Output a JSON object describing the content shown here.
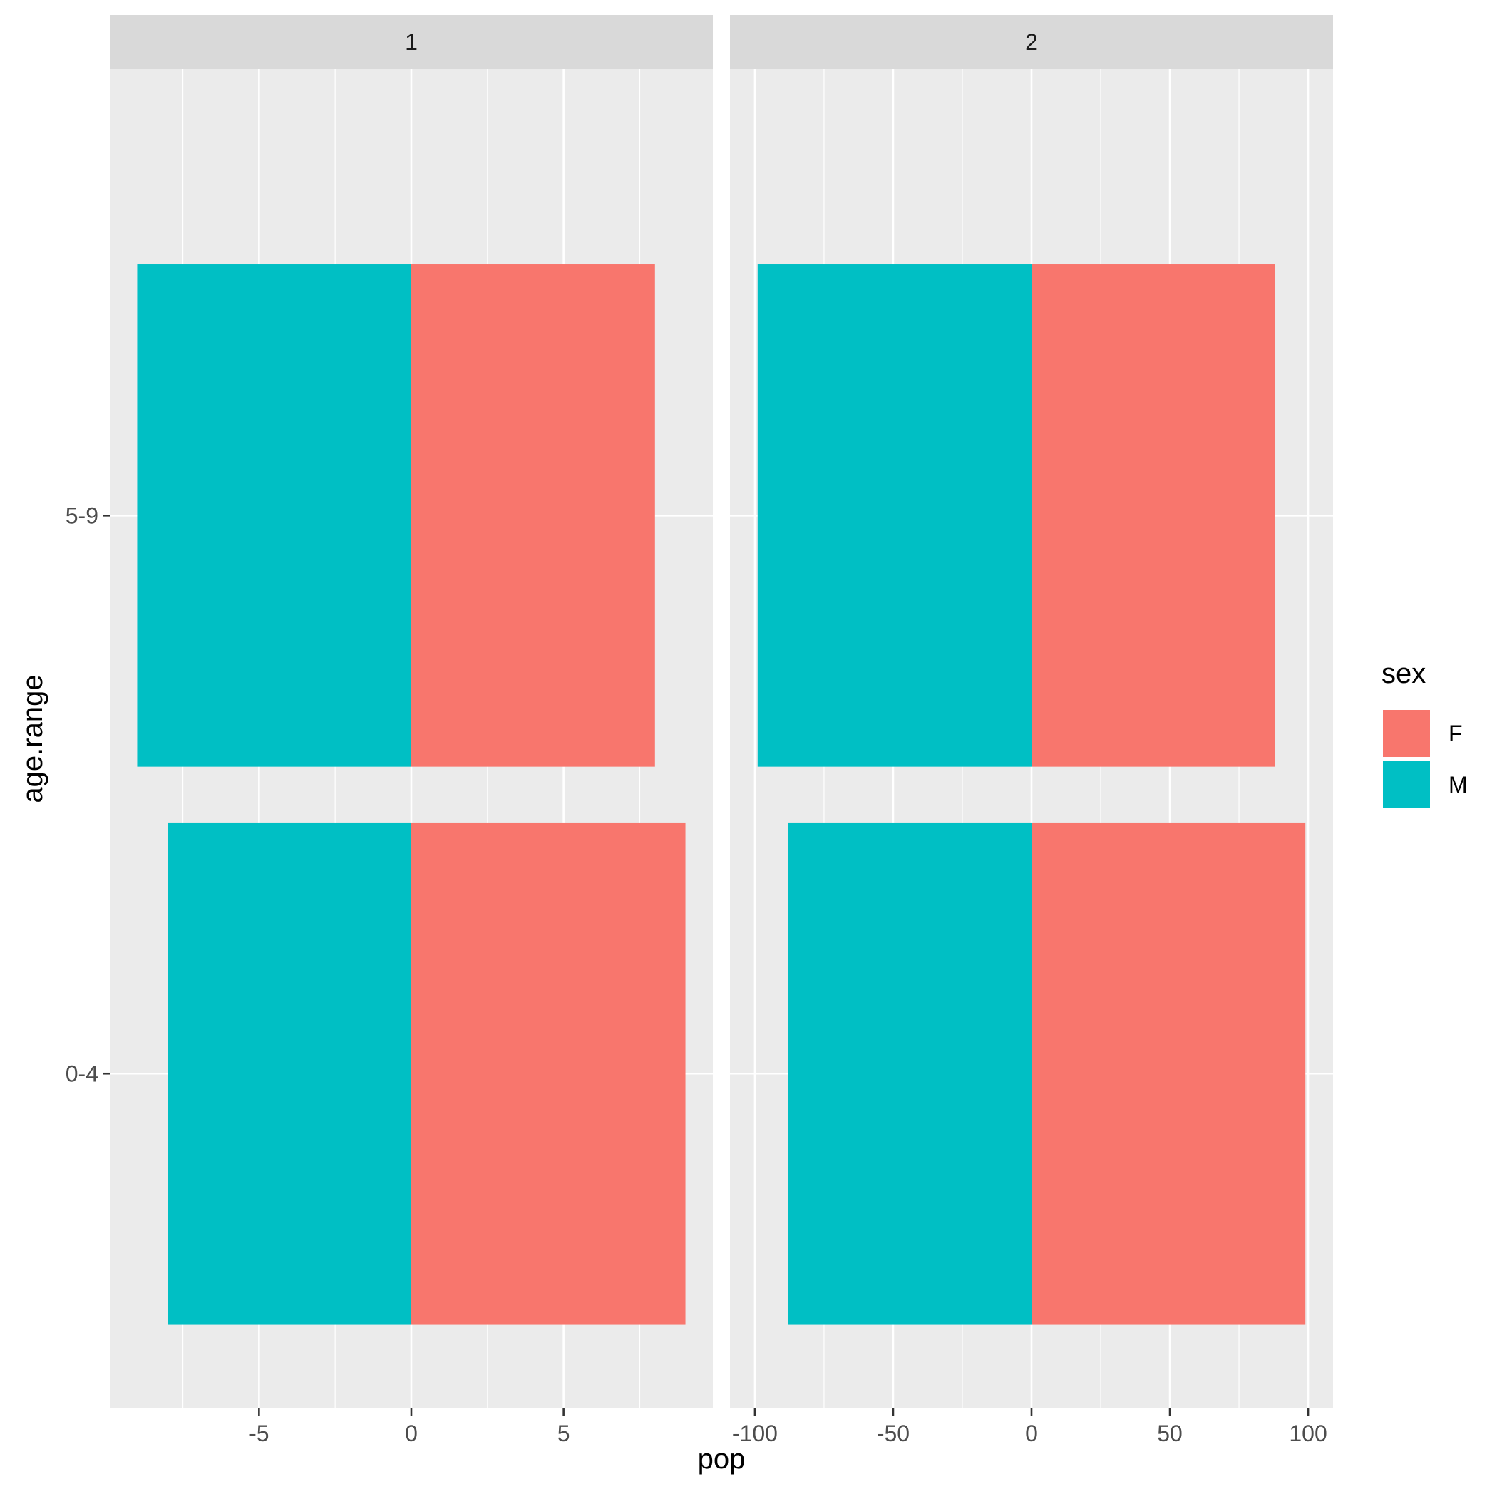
{
  "chart_data": {
    "type": "bar",
    "orientation": "horizontal",
    "facet_variable_values": [
      "1",
      "2"
    ],
    "xlabel": "pop",
    "ylabel": "age.range",
    "categories": [
      "0-4",
      "5-9"
    ],
    "legend": {
      "title": "sex",
      "position": "right",
      "entries": [
        {
          "label": "F",
          "color": "#F8766D"
        },
        {
          "label": "M",
          "color": "#00BFC4"
        }
      ]
    },
    "grid": true,
    "panels": [
      {
        "strip": "1",
        "xlim": [
          -9.9,
          9.9
        ],
        "xticks": [
          -5,
          0,
          5
        ],
        "xtick_labels": [
          "-5",
          "0",
          "5"
        ],
        "series": [
          {
            "name": "F",
            "values": [
              9,
              8
            ]
          },
          {
            "name": "M",
            "values": [
              -8,
              -9
            ]
          }
        ]
      },
      {
        "strip": "2",
        "xlim": [
          -109,
          109
        ],
        "xticks": [
          -100,
          -50,
          0,
          50,
          100
        ],
        "xtick_labels": [
          "-100",
          "-50",
          "0",
          "50",
          "100"
        ],
        "series": [
          {
            "name": "F",
            "values": [
              99,
              88
            ]
          },
          {
            "name": "M",
            "values": [
              -88,
              -99
            ]
          }
        ]
      }
    ]
  }
}
